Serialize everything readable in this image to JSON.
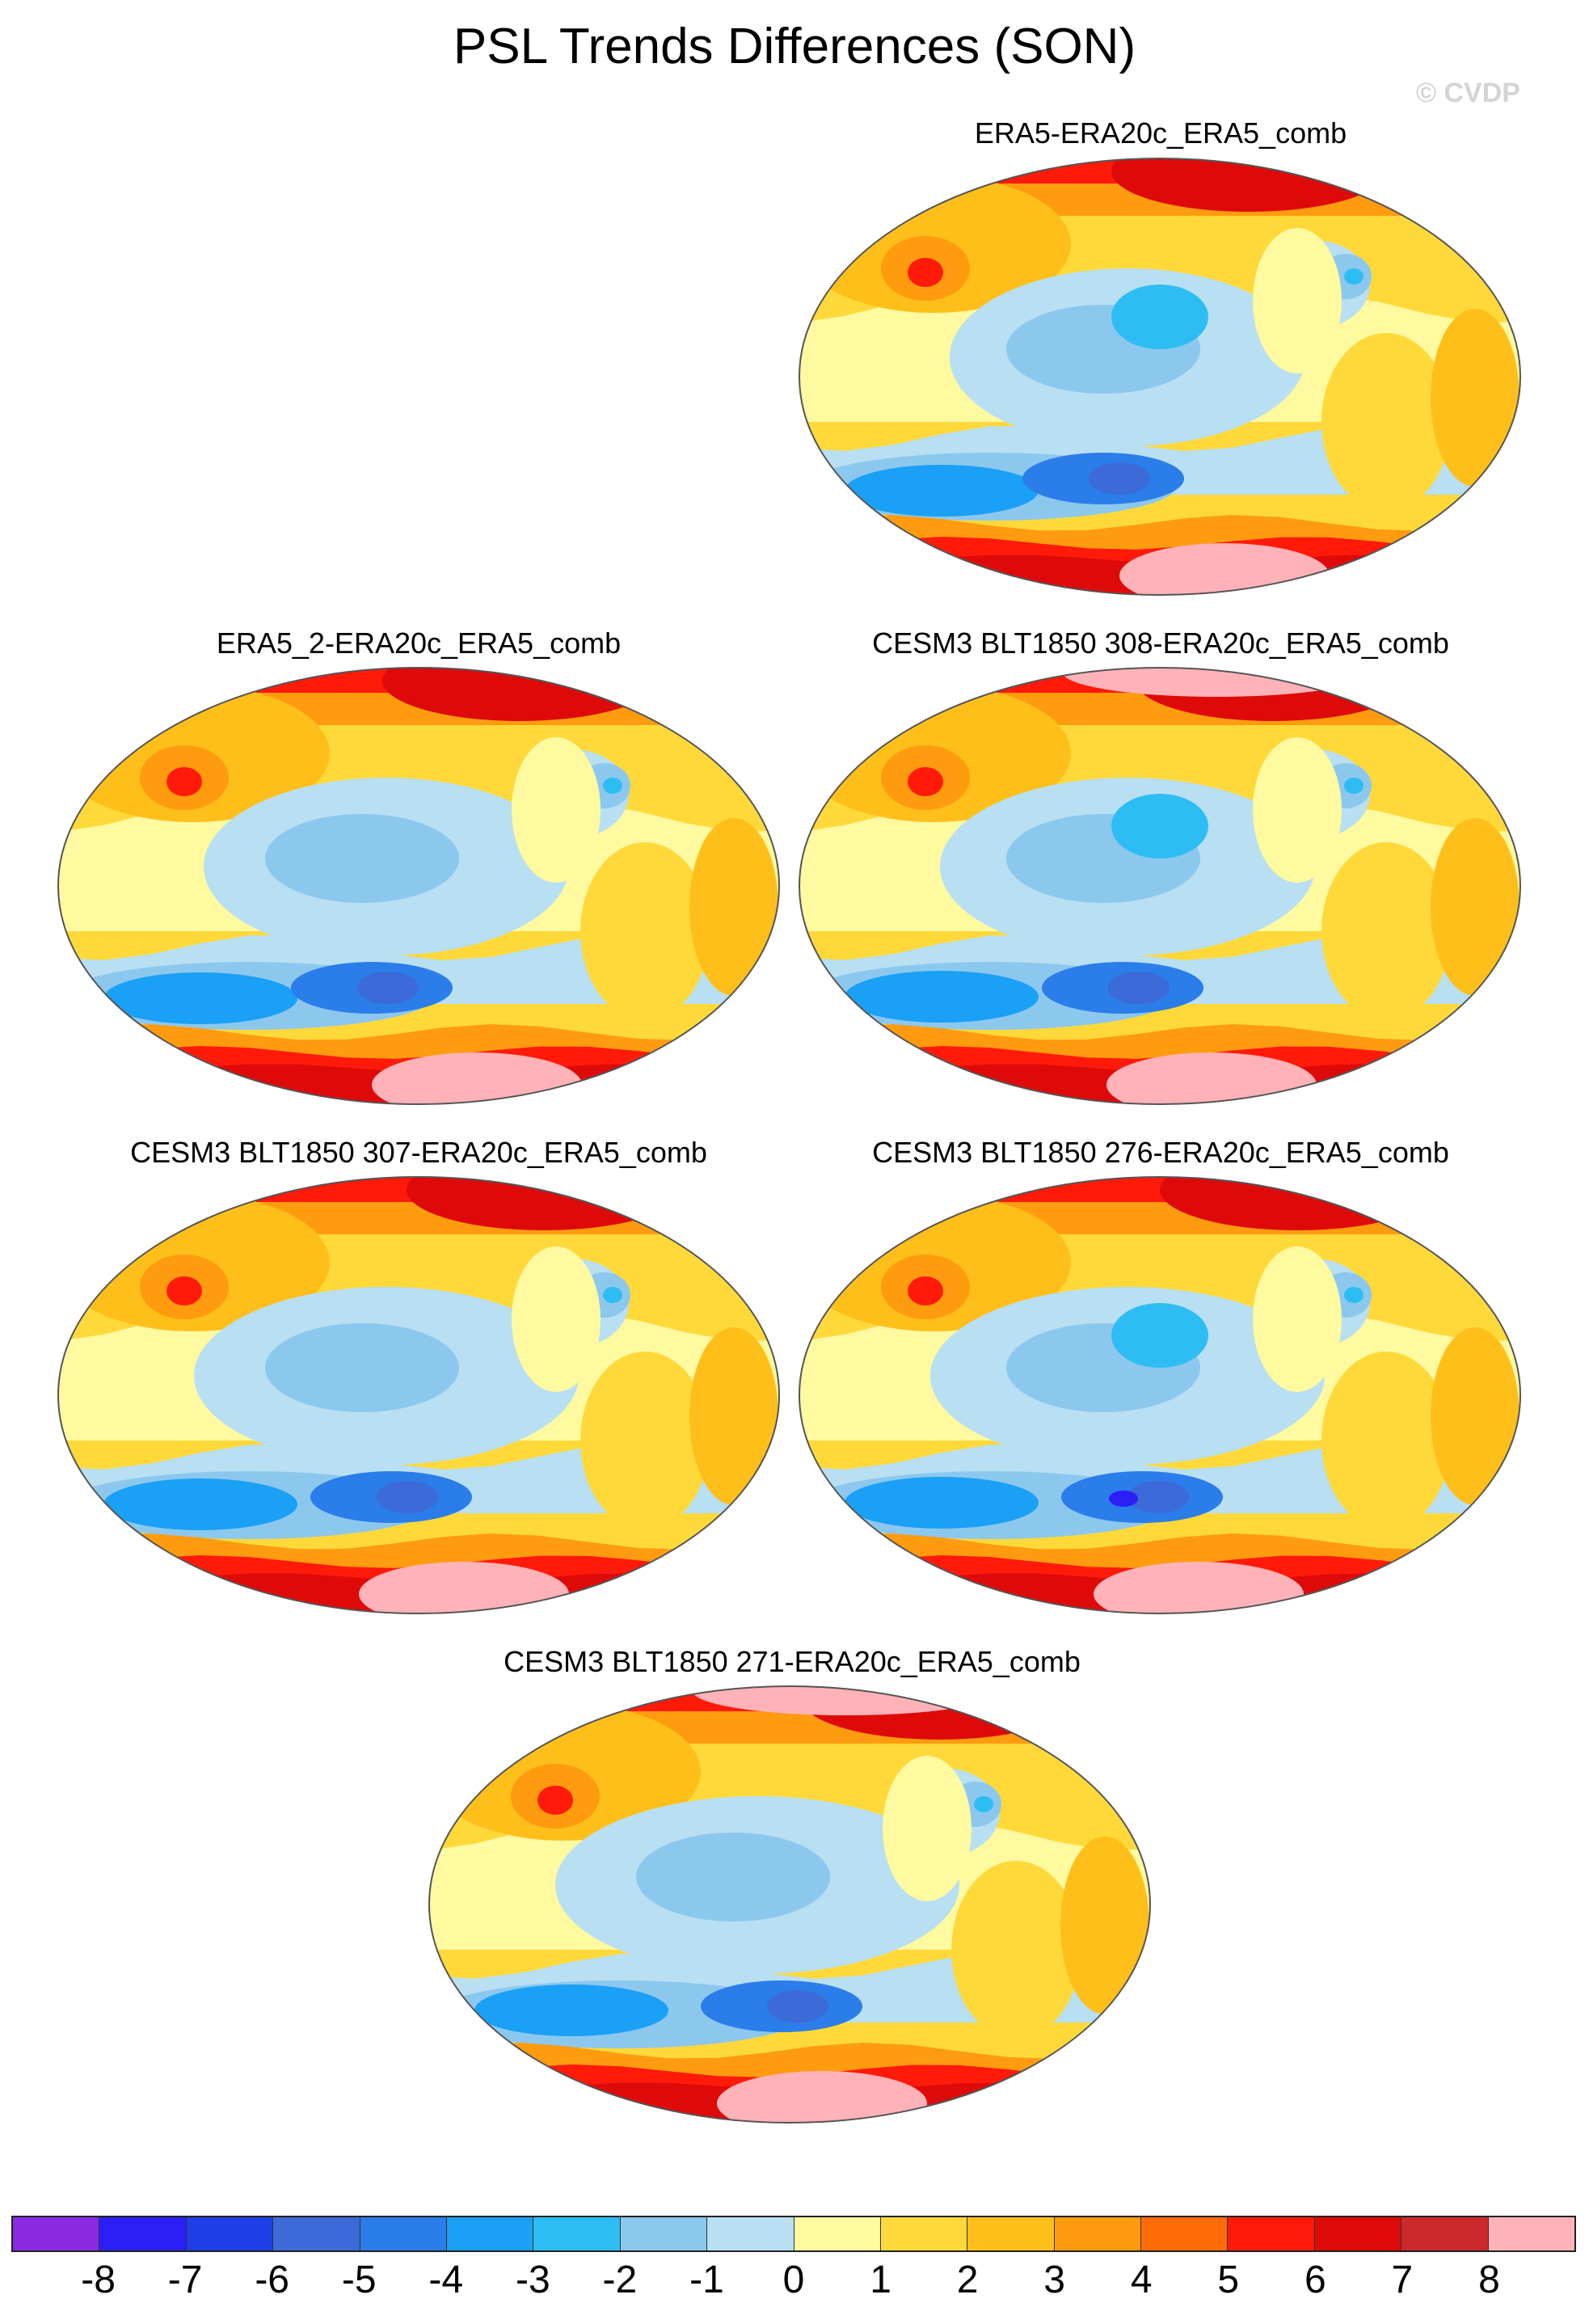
{
  "figure": {
    "title": "PSL Trends Differences (SON)",
    "watermark": "© CVDP"
  },
  "panels": [
    {
      "title": "ERA5-ERA20c_ERA5_comb",
      "variant": 0
    },
    {
      "title": "ERA5_2-ERA20c_ERA5_comb",
      "variant": 1
    },
    {
      "title": "CESM3 BLT1850 308-ERA20c_ERA5_comb",
      "variant": 2
    },
    {
      "title": "CESM3 BLT1850 307-ERA20c_ERA5_comb",
      "variant": 3
    },
    {
      "title": "CESM3 BLT1850 276-ERA20c_ERA5_comb",
      "variant": 4
    },
    {
      "title": "CESM3 BLT1850 271-ERA20c_ERA5_comb",
      "variant": 5
    }
  ],
  "colorbar": {
    "colors": [
      "#8a2be2",
      "#2b1ff5",
      "#1e3ee8",
      "#3c6ad8",
      "#2b7de9",
      "#1aa0f5",
      "#2ebdf2",
      "#8cc8ee",
      "#b8dff2",
      "#fff9a0",
      "#ffd93a",
      "#ffbf1a",
      "#ff9b0f",
      "#ff6c08",
      "#ff1a0a",
      "#de0a0a",
      "#cc2a2a",
      "#ffb3b8"
    ],
    "labels": [
      "-8",
      "-7",
      "-6",
      "-5",
      "-4",
      "-3",
      "-2",
      "-1",
      "0",
      "1",
      "2",
      "3",
      "4",
      "5",
      "6",
      "7",
      "8"
    ]
  }
}
